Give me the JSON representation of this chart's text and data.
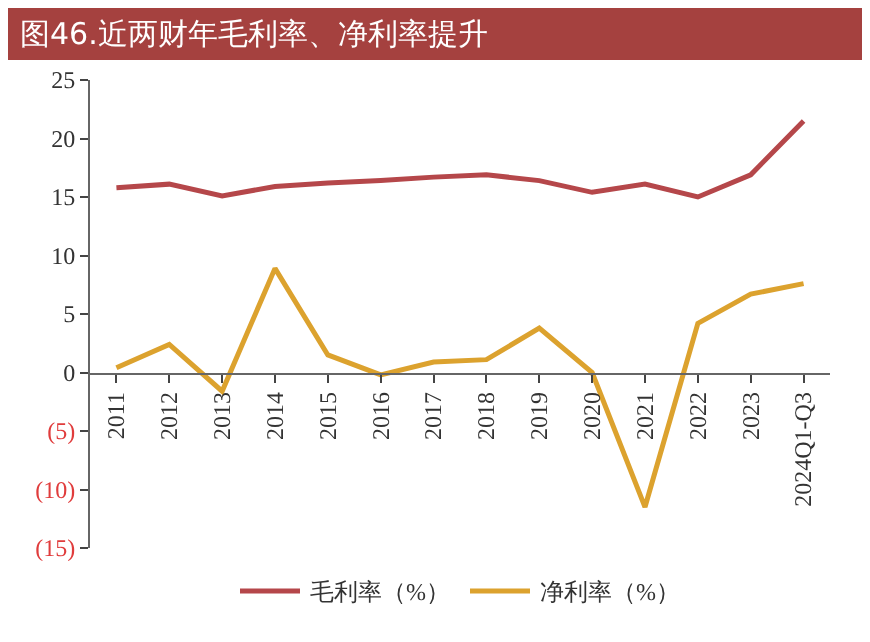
{
  "chart_data": {
    "type": "line",
    "title": "图46.近两财年毛利率、净利率提升",
    "categories": [
      "2011",
      "2012",
      "2013",
      "2014",
      "2015",
      "2016",
      "2017",
      "2018",
      "2019",
      "2020",
      "2021",
      "2022",
      "2023",
      "2024Q1-Q3"
    ],
    "series": [
      {
        "name": "毛利率（%）",
        "color": "#b5474a",
        "values": [
          15.8,
          16.1,
          15.1,
          15.9,
          16.2,
          16.4,
          16.7,
          16.9,
          16.4,
          15.4,
          16.1,
          15.0,
          16.9,
          21.5
        ]
      },
      {
        "name": "净利率（%）",
        "color": "#dca22e",
        "values": [
          0.4,
          2.4,
          -1.6,
          8.9,
          1.5,
          -0.2,
          0.9,
          1.1,
          3.8,
          0,
          -11.5,
          4.2,
          6.7,
          7.6
        ]
      }
    ],
    "ylim": [
      -15,
      25
    ],
    "yticks": [
      {
        "value": -15,
        "label": "(15)"
      },
      {
        "value": -10,
        "label": "(10)"
      },
      {
        "value": -5,
        "label": "(5)"
      },
      0,
      5,
      10,
      15,
      20,
      25
    ],
    "grid": false,
    "legend": "bottom",
    "marker": "none",
    "line_style": "solid"
  }
}
